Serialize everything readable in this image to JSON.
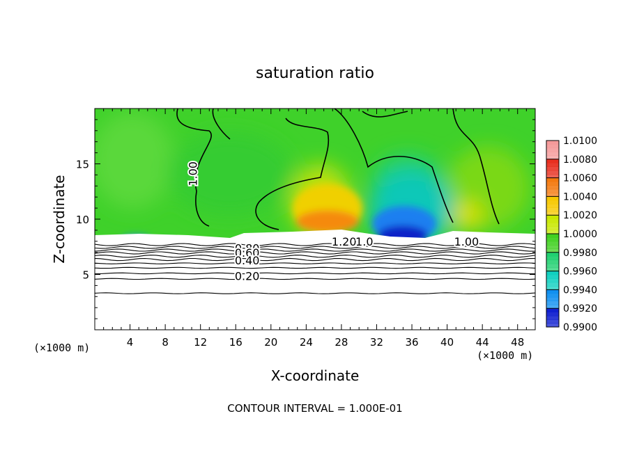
{
  "chart_data": {
    "type": "heatmap",
    "title": "saturation ratio",
    "xlabel": "X-coordinate",
    "ylabel": "Z-coordinate",
    "x_unit_left": "(×1000 m)",
    "x_unit_right": "(×1000 m)",
    "xlim": [
      0,
      50
    ],
    "ylim": [
      0,
      20
    ],
    "x_ticks": [
      4,
      8,
      12,
      16,
      20,
      24,
      28,
      32,
      36,
      40,
      44,
      48
    ],
    "x_tick_labels": [
      "4",
      "8",
      "12",
      "16",
      "20",
      "24",
      "28",
      "32",
      "36",
      "40",
      "44",
      "48"
    ],
    "y_ticks": [
      5,
      10,
      15
    ],
    "y_tick_labels": [
      "5",
      "10",
      "15"
    ],
    "footer": "CONTOUR INTERVAL = 1.000E-01",
    "colorbar": {
      "min": 0.99,
      "max": 1.01,
      "labels": [
        "1.0100",
        "1.0080",
        "1.0060",
        "1.0040",
        "1.0020",
        "1.0000",
        "0.9980",
        "0.9960",
        "0.9940",
        "0.9920",
        "0.9900"
      ],
      "colors": [
        "#f59a9a",
        "#e83020",
        "#f47a10",
        "#f7c800",
        "#c8e800",
        "#40d020",
        "#20d070",
        "#10d0c0",
        "#1090f0",
        "#1020d0",
        "#5020a0"
      ]
    },
    "contour_labels": [
      {
        "text": "1.00",
        "x": 11.6,
        "z": 14.1,
        "rotate": -90
      },
      {
        "text": "1.00",
        "x": 42.2,
        "z": 7.6
      },
      {
        "text": "1.20",
        "x": 28.3,
        "z": 7.6
      },
      {
        "text": "1.0",
        "x": 30.6,
        "z": 7.6
      },
      {
        "text": "0.80",
        "x": 17.3,
        "z": 7.0
      },
      {
        "text": "0.60",
        "x": 17.3,
        "z": 6.6
      },
      {
        "text": "0.40",
        "x": 17.3,
        "z": 5.9
      },
      {
        "text": "0.20",
        "x": 17.3,
        "z": 4.5
      }
    ],
    "stable_layer_contours_z": [
      7.7,
      7.45,
      7.2,
      6.95,
      6.65,
      6.35,
      6.0,
      5.6,
      5.1,
      4.6,
      3.3
    ]
  }
}
